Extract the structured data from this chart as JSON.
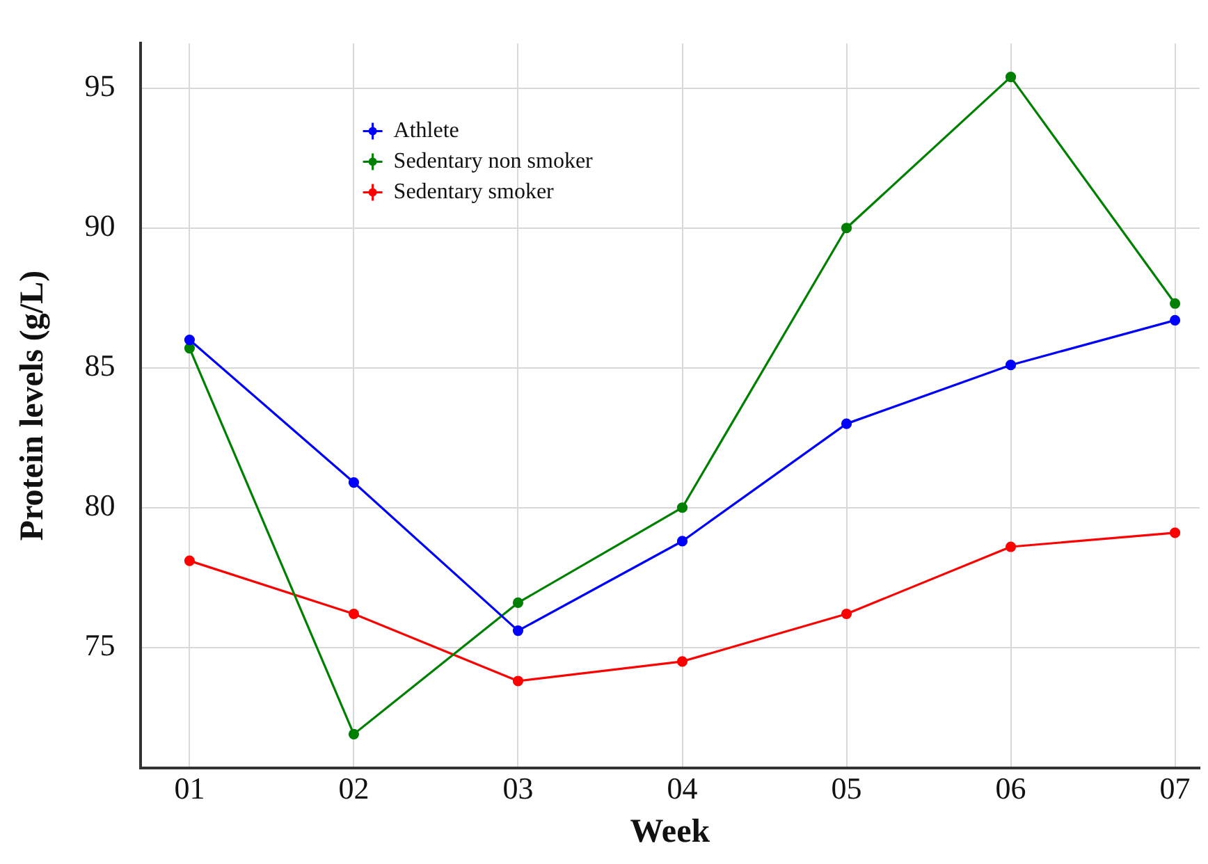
{
  "chart_data": {
    "type": "line",
    "xlabel": "Week",
    "ylabel": "Protein levels (g/L)",
    "x": [
      1,
      2,
      3,
      4,
      5,
      6,
      7
    ],
    "xlim": [
      0.7,
      7.15
    ],
    "xticks": [
      {
        "value": 1,
        "label": "01"
      },
      {
        "value": 2,
        "label": "02"
      },
      {
        "value": 3,
        "label": "03"
      },
      {
        "value": 4,
        "label": "04"
      },
      {
        "value": 5,
        "label": "05"
      },
      {
        "value": 6,
        "label": "06"
      },
      {
        "value": 7,
        "label": "07"
      }
    ],
    "ylim": [
      70.7,
      96.6
    ],
    "yticks": [
      75,
      80,
      85,
      90,
      95
    ],
    "series": [
      {
        "name": "Athlete",
        "color": "#0000ff",
        "values": [
          86.0,
          80.9,
          75.6,
          78.8,
          83.0,
          85.1,
          86.7
        ]
      },
      {
        "name": "Sedentary non smoker",
        "color": "#008000",
        "values": [
          85.7,
          71.9,
          76.6,
          80.0,
          90.0,
          95.4,
          87.3
        ]
      },
      {
        "name": "Sedentary smoker",
        "color": "#ff0000",
        "values": [
          78.1,
          76.2,
          73.8,
          74.5,
          76.2,
          78.6,
          79.1
        ]
      }
    ],
    "grid": true,
    "legend": "top left",
    "marker": "circle",
    "line_style": "solid"
  }
}
